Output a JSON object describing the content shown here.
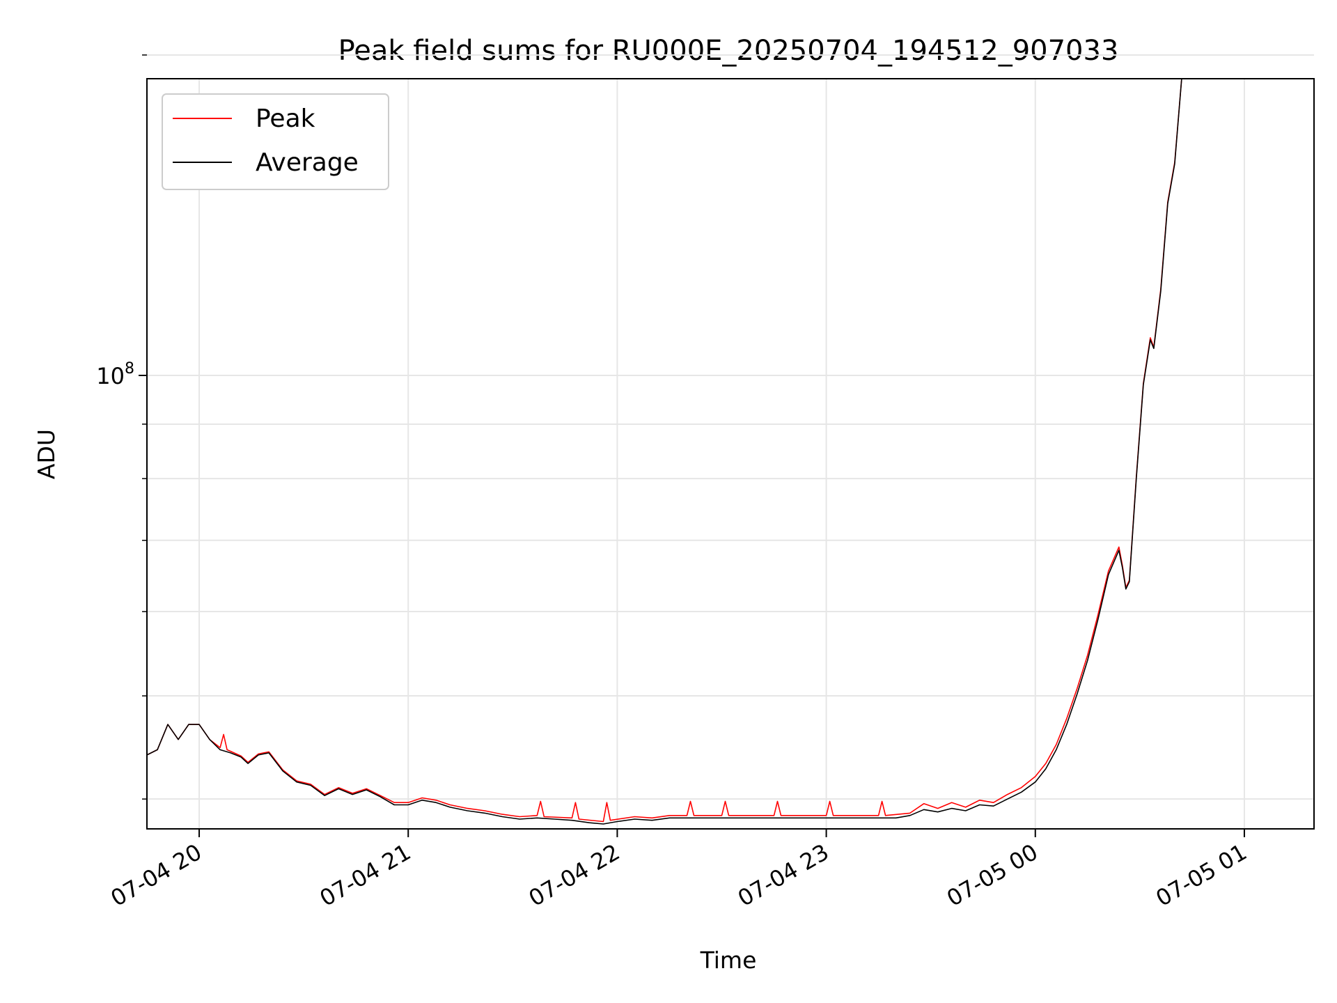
{
  "chart_data": {
    "type": "line",
    "title": "Peak field sums for RU000E_20250704_194512_907033",
    "xlabel": "Time",
    "ylabel": "ADU",
    "x_axis": {
      "scale": "time",
      "range": [
        "2025-07-04 19:45",
        "2025-07-05 01:20"
      ],
      "ticks": [
        {
          "value": "2025-07-04 20:00",
          "label": "07-04 20"
        },
        {
          "value": "2025-07-04 21:00",
          "label": "07-04 21"
        },
        {
          "value": "2025-07-04 22:00",
          "label": "07-04 22"
        },
        {
          "value": "2025-07-04 23:00",
          "label": "07-04 23"
        },
        {
          "value": "2025-07-05 00:00",
          "label": "07-05 00"
        },
        {
          "value": "2025-07-05 01:00",
          "label": "07-05 01"
        }
      ]
    },
    "y_axis": {
      "scale": "log",
      "range": [
        37500000,
        190000000
      ],
      "major_ticks": [
        {
          "value": 100000000,
          "base": "10",
          "exponent": "8"
        }
      ],
      "minor_ticks": [
        40000000,
        50000000,
        60000000,
        70000000,
        80000000,
        90000000,
        200000000
      ]
    },
    "grid": true,
    "legend": {
      "position": "upper-left",
      "entries": [
        {
          "name": "Peak",
          "color": "#ff0000"
        },
        {
          "name": "Average",
          "color": "#000000"
        }
      ]
    },
    "series": [
      {
        "name": "Average",
        "color": "#000000",
        "points": [
          [
            "2025-07-04 19:45",
            44000000
          ],
          [
            "2025-07-04 19:48",
            44500000
          ],
          [
            "2025-07-04 19:51",
            47000000
          ],
          [
            "2025-07-04 19:54",
            45500000
          ],
          [
            "2025-07-04 19:57",
            47000000
          ],
          [
            "2025-07-04 20:00",
            47000000
          ],
          [
            "2025-07-04 20:03",
            45500000
          ],
          [
            "2025-07-04 20:06",
            44500000
          ],
          [
            "2025-07-04 20:09",
            44200000
          ],
          [
            "2025-07-04 20:12",
            43800000
          ],
          [
            "2025-07-04 20:14",
            43200000
          ],
          [
            "2025-07-04 20:17",
            44000000
          ],
          [
            "2025-07-04 20:20",
            44200000
          ],
          [
            "2025-07-04 20:24",
            42500000
          ],
          [
            "2025-07-04 20:28",
            41500000
          ],
          [
            "2025-07-04 20:32",
            41200000
          ],
          [
            "2025-07-04 20:36",
            40300000
          ],
          [
            "2025-07-04 20:40",
            40900000
          ],
          [
            "2025-07-04 20:44",
            40400000
          ],
          [
            "2025-07-04 20:48",
            40800000
          ],
          [
            "2025-07-04 20:52",
            40200000
          ],
          [
            "2025-07-04 20:56",
            39500000
          ],
          [
            "2025-07-04 21:00",
            39500000
          ],
          [
            "2025-07-04 21:04",
            39900000
          ],
          [
            "2025-07-04 21:08",
            39700000
          ],
          [
            "2025-07-04 21:12",
            39300000
          ],
          [
            "2025-07-04 21:17",
            39000000
          ],
          [
            "2025-07-04 21:22",
            38800000
          ],
          [
            "2025-07-04 21:27",
            38500000
          ],
          [
            "2025-07-04 21:32",
            38300000
          ],
          [
            "2025-07-04 21:37",
            38400000
          ],
          [
            "2025-07-04 21:42",
            38300000
          ],
          [
            "2025-07-04 21:47",
            38200000
          ],
          [
            "2025-07-04 21:52",
            38000000
          ],
          [
            "2025-07-04 21:56",
            37900000
          ],
          [
            "2025-07-04 22:00",
            38100000
          ],
          [
            "2025-07-04 22:05",
            38300000
          ],
          [
            "2025-07-04 22:10",
            38200000
          ],
          [
            "2025-07-04 22:15",
            38400000
          ],
          [
            "2025-07-04 22:22",
            38400000
          ],
          [
            "2025-07-04 22:30",
            38400000
          ],
          [
            "2025-07-04 22:40",
            38400000
          ],
          [
            "2025-07-04 22:50",
            38400000
          ],
          [
            "2025-07-04 23:00",
            38400000
          ],
          [
            "2025-07-04 23:10",
            38400000
          ],
          [
            "2025-07-04 23:20",
            38400000
          ],
          [
            "2025-07-04 23:24",
            38600000
          ],
          [
            "2025-07-04 23:28",
            39100000
          ],
          [
            "2025-07-04 23:32",
            38900000
          ],
          [
            "2025-07-04 23:36",
            39200000
          ],
          [
            "2025-07-04 23:40",
            39000000
          ],
          [
            "2025-07-04 23:44",
            39500000
          ],
          [
            "2025-07-04 23:48",
            39400000
          ],
          [
            "2025-07-04 23:52",
            40000000
          ],
          [
            "2025-07-04 23:56",
            40600000
          ],
          [
            "2025-07-05 00:00",
            41500000
          ],
          [
            "2025-07-05 00:03",
            42700000
          ],
          [
            "2025-07-05 00:06",
            44500000
          ],
          [
            "2025-07-05 00:09",
            47000000
          ],
          [
            "2025-07-05 00:12",
            50200000
          ],
          [
            "2025-07-05 00:15",
            54000000
          ],
          [
            "2025-07-05 00:18",
            59000000
          ],
          [
            "2025-07-05 00:21",
            65000000
          ],
          [
            "2025-07-05 00:24",
            68500000
          ],
          [
            "2025-07-05 00:25",
            66000000
          ],
          [
            "2025-07-05 00:26",
            63000000
          ],
          [
            "2025-07-05 00:27",
            64000000
          ],
          [
            "2025-07-05 00:29",
            80000000
          ],
          [
            "2025-07-05 00:31",
            98000000
          ],
          [
            "2025-07-05 00:33",
            108000000
          ],
          [
            "2025-07-05 00:34",
            106000000
          ],
          [
            "2025-07-05 00:36",
            120000000
          ],
          [
            "2025-07-05 00:38",
            145000000
          ],
          [
            "2025-07-05 00:40",
            158000000
          ],
          [
            "2025-07-05 00:42",
            190000000
          ]
        ]
      },
      {
        "name": "Peak",
        "color": "#ff0000",
        "points": [
          [
            "2025-07-04 19:45",
            44000000
          ],
          [
            "2025-07-04 19:48",
            44500000
          ],
          [
            "2025-07-04 19:51",
            47000000
          ],
          [
            "2025-07-04 19:54",
            45500000
          ],
          [
            "2025-07-04 19:57",
            47000000
          ],
          [
            "2025-07-04 20:00",
            47000000
          ],
          [
            "2025-07-04 20:03",
            45500000
          ],
          [
            "2025-07-04 20:06",
            44700000
          ],
          [
            "2025-07-04 20:07",
            46000000
          ],
          [
            "2025-07-04 20:08",
            44500000
          ],
          [
            "2025-07-04 20:12",
            43900000
          ],
          [
            "2025-07-04 20:14",
            43300000
          ],
          [
            "2025-07-04 20:17",
            44100000
          ],
          [
            "2025-07-04 20:20",
            44300000
          ],
          [
            "2025-07-04 20:24",
            42600000
          ],
          [
            "2025-07-04 20:28",
            41600000
          ],
          [
            "2025-07-04 20:32",
            41300000
          ],
          [
            "2025-07-04 20:36",
            40400000
          ],
          [
            "2025-07-04 20:40",
            41000000
          ],
          [
            "2025-07-04 20:44",
            40500000
          ],
          [
            "2025-07-04 20:48",
            40900000
          ],
          [
            "2025-07-04 20:52",
            40300000
          ],
          [
            "2025-07-04 20:56",
            39700000
          ],
          [
            "2025-07-04 21:00",
            39700000
          ],
          [
            "2025-07-04 21:04",
            40100000
          ],
          [
            "2025-07-04 21:08",
            39900000
          ],
          [
            "2025-07-04 21:12",
            39500000
          ],
          [
            "2025-07-04 21:17",
            39200000
          ],
          [
            "2025-07-04 21:22",
            39000000
          ],
          [
            "2025-07-04 21:27",
            38700000
          ],
          [
            "2025-07-04 21:32",
            38500000
          ],
          [
            "2025-07-04 21:37",
            38600000
          ],
          [
            "2025-07-04 21:38",
            39800000
          ],
          [
            "2025-07-04 21:39",
            38500000
          ],
          [
            "2025-07-04 21:47",
            38400000
          ],
          [
            "2025-07-04 21:48",
            39700000
          ],
          [
            "2025-07-04 21:49",
            38300000
          ],
          [
            "2025-07-04 21:56",
            38100000
          ],
          [
            "2025-07-04 21:57",
            39700000
          ],
          [
            "2025-07-04 21:58",
            38200000
          ],
          [
            "2025-07-04 22:05",
            38500000
          ],
          [
            "2025-07-04 22:10",
            38400000
          ],
          [
            "2025-07-04 22:15",
            38600000
          ],
          [
            "2025-07-04 22:20",
            38600000
          ],
          [
            "2025-07-04 22:21",
            39800000
          ],
          [
            "2025-07-04 22:22",
            38600000
          ],
          [
            "2025-07-04 22:30",
            38600000
          ],
          [
            "2025-07-04 22:31",
            39800000
          ],
          [
            "2025-07-04 22:32",
            38600000
          ],
          [
            "2025-07-04 22:45",
            38600000
          ],
          [
            "2025-07-04 22:46",
            39800000
          ],
          [
            "2025-07-04 22:47",
            38600000
          ],
          [
            "2025-07-04 23:00",
            38600000
          ],
          [
            "2025-07-04 23:01",
            39800000
          ],
          [
            "2025-07-04 23:02",
            38600000
          ],
          [
            "2025-07-04 23:15",
            38600000
          ],
          [
            "2025-07-04 23:16",
            39800000
          ],
          [
            "2025-07-04 23:17",
            38600000
          ],
          [
            "2025-07-04 23:24",
            38800000
          ],
          [
            "2025-07-04 23:28",
            39600000
          ],
          [
            "2025-07-04 23:32",
            39200000
          ],
          [
            "2025-07-04 23:36",
            39700000
          ],
          [
            "2025-07-04 23:40",
            39300000
          ],
          [
            "2025-07-04 23:44",
            39900000
          ],
          [
            "2025-07-04 23:48",
            39700000
          ],
          [
            "2025-07-04 23:52",
            40400000
          ],
          [
            "2025-07-04 23:56",
            41000000
          ],
          [
            "2025-07-05 00:00",
            42000000
          ],
          [
            "2025-07-05 00:03",
            43200000
          ],
          [
            "2025-07-05 00:06",
            45000000
          ],
          [
            "2025-07-05 00:09",
            47600000
          ],
          [
            "2025-07-05 00:12",
            50800000
          ],
          [
            "2025-07-05 00:15",
            54600000
          ],
          [
            "2025-07-05 00:18",
            59600000
          ],
          [
            "2025-07-05 00:21",
            65500000
          ],
          [
            "2025-07-05 00:24",
            69000000
          ],
          [
            "2025-07-05 00:25",
            66300000
          ],
          [
            "2025-07-05 00:26",
            63200000
          ],
          [
            "2025-07-05 00:27",
            64200000
          ],
          [
            "2025-07-05 00:29",
            80300000
          ],
          [
            "2025-07-05 00:31",
            98300000
          ],
          [
            "2025-07-05 00:33",
            108500000
          ],
          [
            "2025-07-05 00:34",
            106300000
          ],
          [
            "2025-07-05 00:36",
            120500000
          ],
          [
            "2025-07-05 00:38",
            145500000
          ],
          [
            "2025-07-05 00:40",
            158500000
          ],
          [
            "2025-07-05 00:42",
            190000000
          ]
        ]
      }
    ]
  }
}
